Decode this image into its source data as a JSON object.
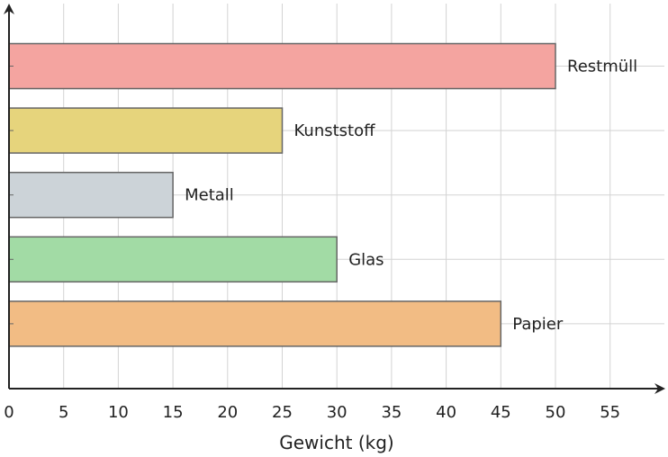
{
  "chart_data": {
    "type": "bar",
    "orientation": "horizontal",
    "xlabel": "Gewicht (kg)",
    "ylabel": "",
    "xlim": [
      0,
      60
    ],
    "x_ticks": [
      0,
      5,
      10,
      15,
      20,
      25,
      30,
      35,
      40,
      45,
      50,
      55
    ],
    "grid": true,
    "legend": "none",
    "bars": [
      {
        "label": "Restmüll",
        "value": 50,
        "color": "#f4a4a0"
      },
      {
        "label": "Kunststoff",
        "value": 25,
        "color": "#e6d47c"
      },
      {
        "label": "Metall",
        "value": 15,
        "color": "#ccd3d8"
      },
      {
        "label": "Glas",
        "value": 30,
        "color": "#a2dba5"
      },
      {
        "label": "Papier",
        "value": 45,
        "color": "#f2bc84"
      }
    ]
  }
}
